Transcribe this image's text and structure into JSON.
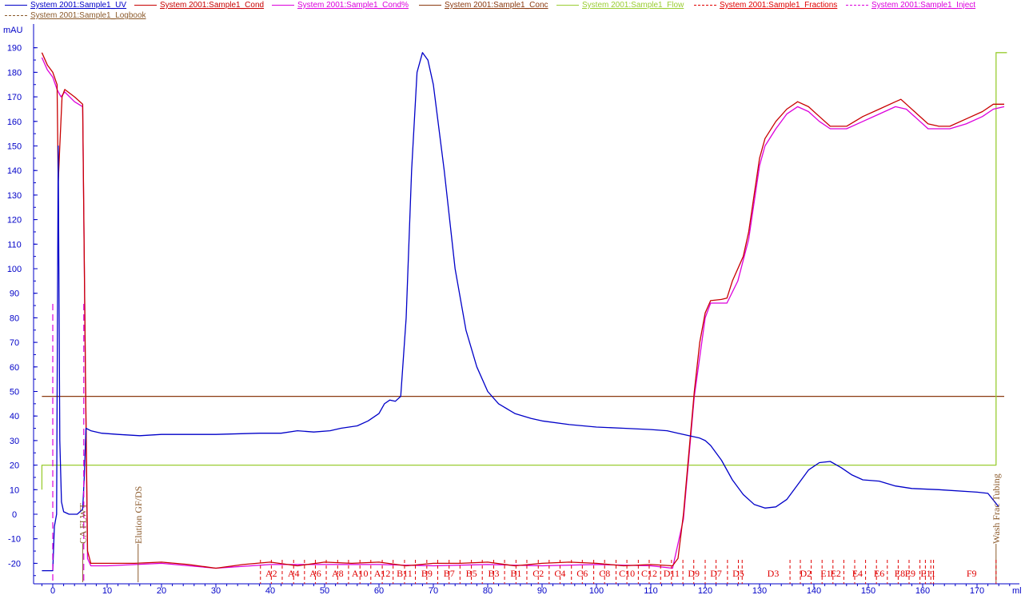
{
  "legend": [
    {
      "label": "System 2001:Sample1_UV",
      "color": "#0000c8",
      "dash": false
    },
    {
      "label": "System 2001:Sample1_Cond",
      "color": "#c80000",
      "dash": false
    },
    {
      "label": "System 2001:Sample1_Cond%",
      "color": "#dc00dc",
      "dash": false
    },
    {
      "label": "System 2001:Sample1_Conc",
      "color": "#8b3a10",
      "dash": false
    },
    {
      "label": "System 2001:Sample1_Flow",
      "color": "#9acd32",
      "dash": false
    },
    {
      "label": "System 2001:Sample1_Fractions",
      "color": "#e00000",
      "dash": true
    },
    {
      "label": "System 2001:Sample1_Inject",
      "color": "#dc00dc",
      "dash": true
    },
    {
      "label": "System 2001:Sample1_Logbook",
      "color": "#8b5a2b",
      "dash": true
    }
  ],
  "chart_data": {
    "type": "line",
    "title": "",
    "ylabel": "mAU",
    "xlabel": "ml",
    "xlim": [
      -3,
      176
    ],
    "ylim": [
      -25,
      195
    ],
    "x_ticks": [
      0,
      10,
      20,
      30,
      40,
      50,
      60,
      70,
      80,
      90,
      100,
      110,
      120,
      130,
      140,
      150,
      160,
      170
    ],
    "y_ticks": [
      -20,
      -10,
      0,
      10,
      20,
      30,
      40,
      50,
      60,
      70,
      80,
      90,
      100,
      110,
      120,
      130,
      140,
      150,
      160,
      170,
      180,
      190
    ],
    "grid": false,
    "legend_position": "top",
    "series": [
      {
        "name": "System 2001:Sample1_UV",
        "color": "#0000c8",
        "points": [
          [
            -2,
            -23
          ],
          [
            0,
            -23
          ],
          [
            0.3,
            -5
          ],
          [
            0.7,
            0
          ],
          [
            1,
            150
          ],
          [
            1.3,
            30
          ],
          [
            1.6,
            5
          ],
          [
            2,
            1
          ],
          [
            3,
            0
          ],
          [
            4.5,
            0
          ],
          [
            5.5,
            2
          ],
          [
            5.8,
            15
          ],
          [
            6.1,
            35
          ],
          [
            7,
            34
          ],
          [
            9,
            33
          ],
          [
            12,
            32.5
          ],
          [
            16,
            32
          ],
          [
            20,
            32.5
          ],
          [
            30,
            32.5
          ],
          [
            38,
            33
          ],
          [
            42,
            33
          ],
          [
            45,
            34
          ],
          [
            48,
            33.5
          ],
          [
            51,
            34
          ],
          [
            53,
            35
          ],
          [
            56,
            36
          ],
          [
            58,
            38
          ],
          [
            60,
            41
          ],
          [
            61,
            45
          ],
          [
            62,
            46.5
          ],
          [
            63,
            46
          ],
          [
            64,
            48
          ],
          [
            65,
            80
          ],
          [
            66,
            140
          ],
          [
            67,
            180
          ],
          [
            68,
            188
          ],
          [
            69,
            185
          ],
          [
            70,
            175
          ],
          [
            72,
            140
          ],
          [
            74,
            100
          ],
          [
            76,
            75
          ],
          [
            78,
            60
          ],
          [
            80,
            50
          ],
          [
            82,
            45
          ],
          [
            85,
            41
          ],
          [
            88,
            39
          ],
          [
            90,
            38
          ],
          [
            95,
            36.5
          ],
          [
            100,
            35.5
          ],
          [
            105,
            35
          ],
          [
            110,
            34.5
          ],
          [
            113,
            34
          ],
          [
            115,
            33
          ],
          [
            117,
            32
          ],
          [
            119,
            31
          ],
          [
            120,
            30
          ],
          [
            121,
            28
          ],
          [
            123,
            22
          ],
          [
            125,
            14
          ],
          [
            127,
            8
          ],
          [
            129,
            4
          ],
          [
            131,
            2.5
          ],
          [
            133,
            3
          ],
          [
            135,
            6
          ],
          [
            137,
            12
          ],
          [
            139,
            18
          ],
          [
            141,
            21
          ],
          [
            143,
            21.5
          ],
          [
            145,
            19
          ],
          [
            147,
            16
          ],
          [
            149,
            14
          ],
          [
            152,
            13.5
          ],
          [
            155,
            11.5
          ],
          [
            158,
            10.5
          ],
          [
            163,
            10
          ],
          [
            170,
            9
          ],
          [
            172,
            8.5
          ],
          [
            174,
            3
          ]
        ]
      },
      {
        "name": "System 2001:Sample1_Cond",
        "color": "#c80000",
        "points": [
          [
            -2,
            188
          ],
          [
            -1,
            183
          ],
          [
            0,
            180
          ],
          [
            0.8,
            175
          ],
          [
            1,
            135
          ],
          [
            1.3,
            150
          ],
          [
            1.7,
            170
          ],
          [
            2.2,
            173
          ],
          [
            4,
            170
          ],
          [
            5.5,
            167
          ],
          [
            6,
            60
          ],
          [
            6.4,
            -15
          ],
          [
            7,
            -20
          ],
          [
            10,
            -20
          ],
          [
            15,
            -20
          ],
          [
            20,
            -19.5
          ],
          [
            25,
            -20.5
          ],
          [
            30,
            -22
          ],
          [
            35,
            -20.5
          ],
          [
            40,
            -19.5
          ],
          [
            45,
            -21
          ],
          [
            50,
            -19.5
          ],
          [
            55,
            -20
          ],
          [
            60,
            -19.5
          ],
          [
            65,
            -21
          ],
          [
            70,
            -20
          ],
          [
            75,
            -20
          ],
          [
            80,
            -19.5
          ],
          [
            85,
            -21
          ],
          [
            90,
            -20
          ],
          [
            95,
            -19.5
          ],
          [
            100,
            -20
          ],
          [
            105,
            -21
          ],
          [
            110,
            -20.5
          ],
          [
            114,
            -21
          ],
          [
            115,
            -18
          ],
          [
            116,
            0
          ],
          [
            117,
            25
          ],
          [
            118,
            50
          ],
          [
            119,
            70
          ],
          [
            120,
            82
          ],
          [
            121,
            87
          ],
          [
            123,
            87.5
          ],
          [
            124,
            88
          ],
          [
            125,
            95
          ],
          [
            127,
            105
          ],
          [
            128,
            115
          ],
          [
            129,
            130
          ],
          [
            130,
            145
          ],
          [
            131,
            153
          ],
          [
            133,
            160
          ],
          [
            135,
            165
          ],
          [
            137,
            168
          ],
          [
            139,
            166
          ],
          [
            141,
            162
          ],
          [
            143,
            158
          ],
          [
            146,
            158
          ],
          [
            149,
            162
          ],
          [
            152,
            165
          ],
          [
            155,
            168
          ],
          [
            156,
            169
          ],
          [
            157,
            167
          ],
          [
            159,
            163
          ],
          [
            161,
            159
          ],
          [
            163,
            158
          ],
          [
            165,
            158
          ],
          [
            168,
            161
          ],
          [
            171,
            164
          ],
          [
            173,
            167
          ],
          [
            175,
            167
          ]
        ]
      },
      {
        "name": "System 2001:Sample1_Cond%",
        "color": "#dc00dc",
        "points": [
          [
            -2,
            186
          ],
          [
            -1,
            181
          ],
          [
            0,
            178
          ],
          [
            0.8,
            173
          ],
          [
            1.5,
            170
          ],
          [
            2.2,
            172
          ],
          [
            4,
            168
          ],
          [
            5.5,
            166
          ],
          [
            6,
            58
          ],
          [
            6.4,
            -18
          ],
          [
            7,
            -21
          ],
          [
            10,
            -21
          ],
          [
            20,
            -20
          ],
          [
            30,
            -22
          ],
          [
            40,
            -20.5
          ],
          [
            50,
            -20.5
          ],
          [
            60,
            -20.5
          ],
          [
            70,
            -21
          ],
          [
            80,
            -20.5
          ],
          [
            90,
            -21
          ],
          [
            100,
            -20.5
          ],
          [
            110,
            -21
          ],
          [
            114,
            -22
          ],
          [
            116,
            -2
          ],
          [
            118,
            48
          ],
          [
            120,
            80
          ],
          [
            121,
            86
          ],
          [
            124,
            86
          ],
          [
            126,
            95
          ],
          [
            128,
            112
          ],
          [
            130,
            142
          ],
          [
            131,
            150
          ],
          [
            133,
            157
          ],
          [
            135,
            163
          ],
          [
            137,
            166
          ],
          [
            139,
            164
          ],
          [
            141,
            160
          ],
          [
            143,
            157
          ],
          [
            146,
            157
          ],
          [
            149,
            160
          ],
          [
            152,
            163
          ],
          [
            155,
            166
          ],
          [
            157,
            165
          ],
          [
            159,
            161
          ],
          [
            161,
            157
          ],
          [
            165,
            157
          ],
          [
            168,
            159
          ],
          [
            171,
            162
          ],
          [
            173,
            165
          ],
          [
            175,
            166
          ]
        ]
      },
      {
        "name": "System 2001:Sample1_Conc",
        "color": "#8b3a10",
        "points": [
          [
            -2,
            48
          ],
          [
            175,
            48
          ]
        ]
      },
      {
        "name": "System 2001:Sample1_Flow",
        "color": "#9acd32",
        "points": [
          [
            -2,
            10
          ],
          [
            -2,
            20
          ],
          [
            173.5,
            20
          ],
          [
            173.5,
            188
          ],
          [
            175.5,
            188
          ]
        ]
      }
    ],
    "inject_marks": [
      0,
      5.7
    ],
    "logbook_marks": [
      {
        "x": 5.5,
        "label": "CA FLWT"
      },
      {
        "x": 15.7,
        "label": "Elution GF/DS"
      },
      {
        "x": 173.5,
        "label": "Wash Frac Tubing"
      }
    ],
    "fractions": [
      {
        "x": 40.2,
        "label": "A2"
      },
      {
        "x": 44.3,
        "label": "A4"
      },
      {
        "x": 48.3,
        "label": "A6"
      },
      {
        "x": 52.4,
        "label": "A8"
      },
      {
        "x": 56.5,
        "label": "A10"
      },
      {
        "x": 60.6,
        "label": "A12"
      },
      {
        "x": 64.7,
        "label": "B11"
      },
      {
        "x": 68.8,
        "label": "B9"
      },
      {
        "x": 72.9,
        "label": "B7"
      },
      {
        "x": 77.0,
        "label": "B5"
      },
      {
        "x": 81.1,
        "label": "B3"
      },
      {
        "x": 85.2,
        "label": "B1"
      },
      {
        "x": 89.3,
        "label": "C2"
      },
      {
        "x": 93.3,
        "label": "C4"
      },
      {
        "x": 97.4,
        "label": "C6"
      },
      {
        "x": 101.5,
        "label": "C8"
      },
      {
        "x": 105.6,
        "label": "C10"
      },
      {
        "x": 109.7,
        "label": "C12"
      },
      {
        "x": 113.8,
        "label": "D11"
      },
      {
        "x": 117.9,
        "label": "D9"
      },
      {
        "x": 122.0,
        "label": "D7"
      },
      {
        "x": 126.1,
        "label": "D5"
      },
      {
        "x": 132.5,
        "label": "D3"
      },
      {
        "x": 138.5,
        "label": "D2"
      },
      {
        "x": 142.2,
        "label": "E1"
      },
      {
        "x": 144.0,
        "label": "E2"
      },
      {
        "x": 148.0,
        "label": "E4"
      },
      {
        "x": 152.0,
        "label": "E6"
      },
      {
        "x": 155.8,
        "label": "E8"
      },
      {
        "x": 157.7,
        "label": "E9"
      },
      {
        "x": 161.0,
        "label": "E11"
      },
      {
        "x": 169.0,
        "label": "F9"
      }
    ],
    "fraction_ticks": [
      38.2,
      40.2,
      42.2,
      44.3,
      46.3,
      48.3,
      50.3,
      52.4,
      54.4,
      56.5,
      58.5,
      60.6,
      62.6,
      64.7,
      66.7,
      68.8,
      70.8,
      72.9,
      74.9,
      77.0,
      79.0,
      81.1,
      83.1,
      85.2,
      87.2,
      89.3,
      91.3,
      93.3,
      95.4,
      97.4,
      99.5,
      101.5,
      103.6,
      105.6,
      107.7,
      109.7,
      111.8,
      113.8,
      115.9,
      117.9,
      120.0,
      122.0,
      124.1,
      126.1,
      126.8,
      135.6,
      137.5,
      139.5,
      141.5,
      143.5,
      145.5,
      147.5,
      149.5,
      151.5,
      153.5,
      155.5,
      157.5,
      159.5,
      160.5,
      161.5,
      162.0,
      173.5
    ]
  }
}
